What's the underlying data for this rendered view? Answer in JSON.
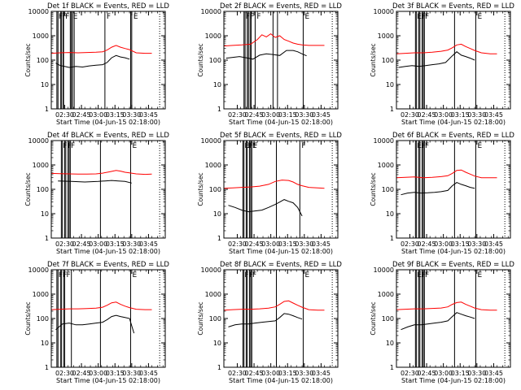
{
  "x_tick_labels": [
    "02:30",
    "02:45",
    "03:00",
    "03:15",
    "03:30",
    "03:45"
  ],
  "x_axis_label": "Start Time (04-Jun-15 02:18:00)",
  "y_axis_label": "Counts/sec",
  "y_tick_labels": [
    "1",
    "10",
    "100",
    "1000",
    "10000"
  ],
  "colors": {
    "events": "#000000",
    "lld": "#ff0000"
  },
  "chart_data": [
    {
      "type": "line",
      "title": "Det 1f BLACK = Events, RED = LLD",
      "ylim": [
        1,
        10000
      ],
      "log_y": true,
      "x_unit": "minutes since 02:18",
      "xlim": [
        0,
        102
      ],
      "vlines": [
        5,
        6,
        8.5,
        9,
        10.5,
        11,
        17,
        18,
        19,
        20.5,
        48,
        71,
        72
      ],
      "markers": [
        "F",
        "F",
        "F",
        "E",
        "F",
        "E"
      ],
      "series": [
        {
          "name": "BLACK = Events",
          "x": [
            4,
            8,
            12,
            16,
            22,
            28,
            34,
            40,
            46,
            50,
            54,
            58,
            62,
            66,
            70
          ],
          "values": [
            75,
            60,
            55,
            50,
            55,
            52,
            58,
            62,
            65,
            80,
            125,
            155,
            135,
            125,
            110
          ]
        },
        {
          "name": "RED = LLD",
          "x": [
            0,
            8,
            16,
            24,
            32,
            40,
            46,
            50,
            54,
            58,
            62,
            66,
            70,
            76,
            84,
            90
          ],
          "values": [
            190,
            200,
            205,
            200,
            205,
            210,
            220,
            260,
            340,
            400,
            340,
            300,
            270,
            200,
            190,
            190
          ]
        }
      ]
    },
    {
      "type": "line",
      "title": "Det 2f BLACK = Events, RED = LLD",
      "ylim": [
        1,
        10000
      ],
      "log_y": true,
      "x_unit": "minutes since 02:18",
      "xlim": [
        0,
        102
      ],
      "vlines": [
        18,
        19,
        21,
        22,
        23.5,
        24.5,
        28,
        44,
        48,
        71
      ],
      "markers": [
        "F",
        "F",
        "F",
        "E"
      ],
      "series": [
        {
          "name": "BLACK = Events",
          "x": [
            2,
            8,
            14,
            20,
            26,
            32,
            38,
            44,
            50,
            56,
            62,
            66,
            70,
            74
          ],
          "values": [
            120,
            130,
            140,
            125,
            110,
            160,
            180,
            170,
            155,
            250,
            250,
            220,
            180,
            150
          ]
        },
        {
          "name": "RED = LLD",
          "x": [
            0,
            8,
            16,
            24,
            30,
            34,
            38,
            42,
            46,
            50,
            54,
            58,
            62,
            66,
            70,
            76,
            84,
            90
          ],
          "values": [
            380,
            400,
            420,
            450,
            700,
            1100,
            900,
            1200,
            850,
            1000,
            700,
            600,
            500,
            450,
            420,
            400,
            400,
            400
          ]
        }
      ]
    },
    {
      "type": "line",
      "title": "Det 3f BLACK = Events, RED = LLD",
      "ylim": [
        1,
        10000
      ],
      "log_y": true,
      "x_unit": "minutes since 02:18",
      "xlim": [
        0,
        102
      ],
      "vlines": [
        17,
        18,
        20,
        21,
        23,
        24,
        25,
        52,
        71
      ],
      "markers": [
        "E",
        "F",
        "F",
        "E"
      ],
      "series": [
        {
          "name": "BLACK = Events",
          "x": [
            2,
            8,
            14,
            20,
            26,
            32,
            38,
            44,
            50,
            54,
            58,
            62,
            66,
            70
          ],
          "values": [
            50,
            55,
            60,
            55,
            60,
            65,
            70,
            80,
            150,
            220,
            160,
            140,
            120,
            100
          ]
        },
        {
          "name": "RED = LLD",
          "x": [
            0,
            8,
            16,
            24,
            32,
            40,
            46,
            50,
            54,
            58,
            62,
            66,
            70,
            76,
            84,
            90
          ],
          "values": [
            180,
            190,
            200,
            200,
            210,
            230,
            260,
            320,
            420,
            450,
            360,
            300,
            250,
            200,
            180,
            180
          ]
        }
      ]
    },
    {
      "type": "line",
      "title": "Det 4f BLACK = Events, RED = LLD",
      "ylim": [
        1,
        10000
      ],
      "log_y": true,
      "x_unit": "minutes since 02:18",
      "xlim": [
        0,
        102
      ],
      "vlines": [
        9,
        10,
        12,
        13,
        15,
        16,
        17,
        44,
        71
      ],
      "markers": [
        "F",
        "F",
        "F",
        "E"
      ],
      "series": [
        {
          "name": "BLACK = Events",
          "x": [
            6,
            12,
            18,
            24,
            30,
            36,
            42,
            48,
            54,
            60,
            66,
            72
          ],
          "values": [
            220,
            215,
            210,
            205,
            200,
            205,
            210,
            220,
            230,
            220,
            210,
            180
          ]
        },
        {
          "name": "RED = LLD",
          "x": [
            0,
            8,
            16,
            24,
            32,
            40,
            46,
            52,
            58,
            62,
            66,
            70,
            76,
            84,
            90
          ],
          "values": [
            450,
            440,
            430,
            420,
            420,
            430,
            460,
            520,
            600,
            560,
            500,
            470,
            430,
            410,
            420
          ]
        }
      ]
    },
    {
      "type": "line",
      "title": "Det 5f BLACK = Events, RED = LLD",
      "ylim": [
        1,
        10000
      ],
      "log_y": true,
      "x_unit": "minutes since 02:18",
      "xlim": [
        0,
        102
      ],
      "vlines": [
        17,
        18,
        20,
        21,
        23,
        24,
        25,
        47,
        68
      ],
      "markers": [
        "E",
        "F",
        "F",
        "E",
        "F",
        "F"
      ],
      "series": [
        {
          "name": "BLACK = Events",
          "x": [
            4,
            10,
            16,
            22,
            28,
            34,
            40,
            46,
            50,
            54,
            58,
            62,
            66,
            70
          ],
          "values": [
            22,
            18,
            14,
            12,
            13,
            14,
            18,
            24,
            30,
            38,
            32,
            28,
            18,
            8
          ]
        },
        {
          "name": "RED = LLD",
          "x": [
            0,
            8,
            16,
            24,
            32,
            40,
            46,
            52,
            58,
            62,
            66,
            70,
            76,
            84,
            90
          ],
          "values": [
            110,
            115,
            120,
            125,
            135,
            160,
            210,
            240,
            230,
            200,
            160,
            140,
            120,
            115,
            110
          ]
        }
      ]
    },
    {
      "type": "line",
      "title": "Det 6f BLACK = Events, RED = LLD",
      "ylim": [
        1,
        10000
      ],
      "log_y": true,
      "x_unit": "minutes since 02:18",
      "xlim": [
        0,
        102
      ],
      "vlines": [
        17,
        18,
        20,
        21,
        23,
        24,
        25,
        52,
        71
      ],
      "markers": [
        "E",
        "F",
        "F",
        "E"
      ],
      "series": [
        {
          "name": "BLACK = Events",
          "x": [
            4,
            10,
            16,
            22,
            28,
            34,
            40,
            46,
            50,
            54,
            58,
            62,
            66,
            70
          ],
          "values": [
            60,
            70,
            75,
            70,
            72,
            75,
            80,
            90,
            140,
            190,
            160,
            140,
            120,
            110
          ]
        },
        {
          "name": "RED = LLD",
          "x": [
            0,
            8,
            16,
            24,
            32,
            40,
            46,
            50,
            54,
            58,
            62,
            66,
            70,
            76,
            84,
            90
          ],
          "values": [
            300,
            310,
            320,
            300,
            310,
            330,
            360,
            450,
            600,
            620,
            500,
            420,
            350,
            300,
            300,
            300
          ]
        }
      ]
    },
    {
      "type": "line",
      "title": "Det 7f BLACK = Events, RED = LLD",
      "ylim": [
        1,
        10000
      ],
      "log_y": true,
      "x_unit": "minutes since 02:18",
      "xlim": [
        0,
        102
      ],
      "vlines": [
        5,
        6,
        8.5,
        9,
        11,
        12,
        18,
        44,
        71
      ],
      "markers": [
        "F",
        "F",
        "F",
        "E"
      ],
      "series": [
        {
          "name": "BLACK = Events",
          "x": [
            4,
            10,
            16,
            22,
            28,
            34,
            40,
            46,
            50,
            54,
            58,
            62,
            66,
            70,
            74
          ],
          "values": [
            35,
            60,
            65,
            55,
            55,
            60,
            65,
            70,
            90,
            120,
            135,
            120,
            110,
            100,
            25
          ]
        },
        {
          "name": "RED = LLD",
          "x": [
            0,
            8,
            16,
            24,
            32,
            40,
            46,
            50,
            54,
            58,
            62,
            66,
            70,
            76,
            84,
            90
          ],
          "values": [
            230,
            240,
            250,
            250,
            255,
            265,
            290,
            350,
            440,
            470,
            380,
            320,
            280,
            240,
            230,
            230
          ]
        }
      ]
    },
    {
      "type": "line",
      "title": "Det 8f BLACK = Events, RED = LLD",
      "ylim": [
        1,
        10000
      ],
      "log_y": true,
      "x_unit": "minutes since 02:18",
      "xlim": [
        0,
        102
      ],
      "vlines": [
        17,
        18,
        20,
        21,
        23,
        24,
        25,
        47,
        71
      ],
      "markers": [
        "F",
        "F",
        "F",
        "E"
      ],
      "series": [
        {
          "name": "BLACK = Events",
          "x": [
            4,
            10,
            16,
            22,
            28,
            34,
            40,
            46,
            50,
            54,
            58,
            62,
            66,
            70
          ],
          "values": [
            45,
            55,
            60,
            60,
            65,
            70,
            75,
            80,
            110,
            160,
            150,
            130,
            110,
            95
          ]
        },
        {
          "name": "RED = LLD",
          "x": [
            0,
            8,
            16,
            24,
            32,
            40,
            46,
            50,
            54,
            58,
            62,
            66,
            70,
            76,
            84,
            90
          ],
          "values": [
            220,
            230,
            240,
            240,
            250,
            265,
            300,
            380,
            500,
            530,
            430,
            350,
            290,
            230,
            220,
            220
          ]
        }
      ]
    },
    {
      "type": "line",
      "title": "Det 9f BLACK = Events, RED = LLD",
      "ylim": [
        1,
        10000
      ],
      "log_y": true,
      "x_unit": "minutes since 02:18",
      "xlim": [
        0,
        102
      ],
      "vlines": [
        17,
        18,
        20,
        21,
        23,
        24,
        25,
        52,
        71
      ],
      "markers": [
        "E",
        "F",
        "F",
        "E"
      ],
      "series": [
        {
          "name": "BLACK = Events",
          "x": [
            4,
            10,
            16,
            22,
            28,
            34,
            40,
            46,
            50,
            54,
            58,
            62,
            66,
            70
          ],
          "values": [
            35,
            45,
            55,
            55,
            60,
            65,
            70,
            80,
            120,
            175,
            150,
            130,
            115,
            100
          ]
        },
        {
          "name": "RED = LLD",
          "x": [
            0,
            8,
            16,
            24,
            32,
            40,
            46,
            50,
            54,
            58,
            62,
            66,
            70,
            76,
            84,
            90
          ],
          "values": [
            230,
            240,
            250,
            250,
            260,
            270,
            300,
            380,
            450,
            470,
            380,
            320,
            270,
            230,
            220,
            220
          ]
        }
      ]
    }
  ]
}
